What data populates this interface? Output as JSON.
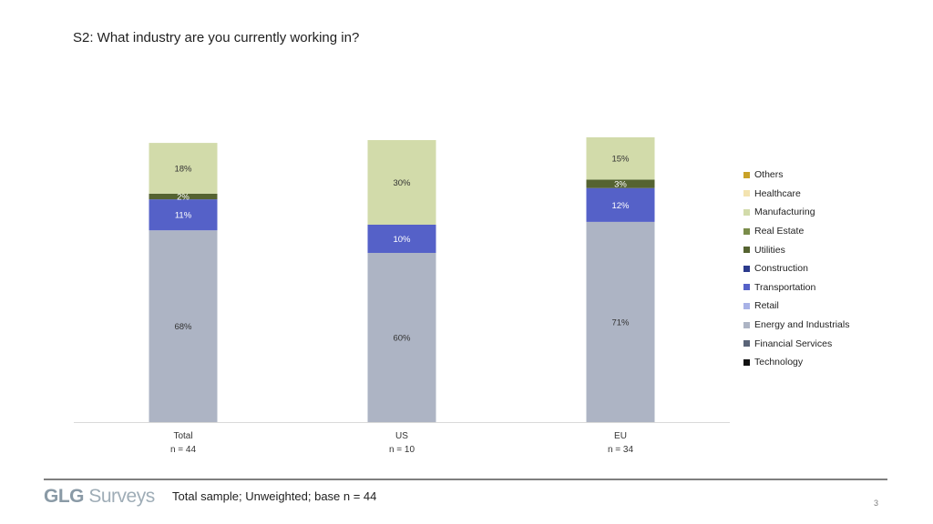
{
  "title": "S2: What industry are you currently working in?",
  "footer": {
    "brand_bold": "GLG",
    "brand_light": "Surveys",
    "note": "Total sample; Unweighted; base n = 44",
    "page": "3"
  },
  "colors": {
    "Others": "#c9a227",
    "Healthcare": "#f3e3b0",
    "Manufacturing": "#d2dbaa",
    "Real Estate": "#7a8c4a",
    "Utilities": "#556331",
    "Construction": "#2b3a8c",
    "Transportation": "#5561c8",
    "Retail": "#a8b2e6",
    "Energy and Industrials": "#adb4c4",
    "Financial Services": "#5a6478",
    "Technology": "#111111"
  },
  "chart_data": {
    "type": "bar",
    "stacked": true,
    "categories": [
      "Total",
      "US",
      "EU"
    ],
    "category_sublabels": [
      "n = 44",
      "n = 10",
      "n = 34"
    ],
    "ylim": [
      0,
      100
    ],
    "unit": "%",
    "series": [
      {
        "name": "Energy and Industrials",
        "values": [
          68,
          60,
          71
        ]
      },
      {
        "name": "Transportation",
        "values": [
          11,
          10,
          12
        ]
      },
      {
        "name": "Utilities",
        "values": [
          2,
          0,
          3
        ]
      },
      {
        "name": "Manufacturing",
        "values": [
          18,
          30,
          15
        ]
      }
    ],
    "legend": [
      "Others",
      "Healthcare",
      "Manufacturing",
      "Real Estate",
      "Utilities",
      "Construction",
      "Transportation",
      "Retail",
      "Energy and Industrials",
      "Financial Services",
      "Technology"
    ],
    "legend_position": "right"
  }
}
